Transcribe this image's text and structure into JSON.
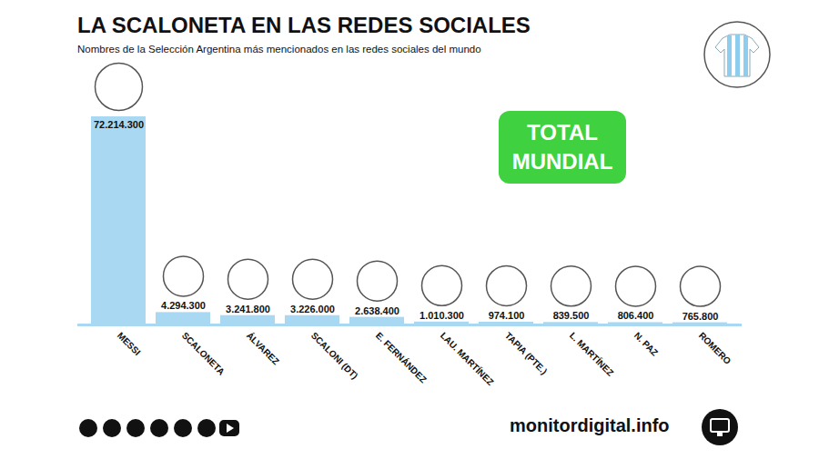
{
  "chart_data": {
    "type": "bar",
    "title": "LA SCALONETA EN LAS REDES SOCIALES",
    "subtitle": "Nombres de la Selección Argentina más mencionados en las redes sociales del mundo",
    "categories": [
      "MESSI",
      "SCALONETA",
      "ÁLVAREZ",
      "SCALONI (DT)",
      "E. FERNÁNDEZ",
      "LAU. MARTÍNEZ",
      "TAPIA (PTE.)",
      "L. MARTÍNEZ",
      "N. PAZ",
      "ROMERO"
    ],
    "values": [
      72214300,
      4294300,
      3241800,
      3226000,
      2638400,
      1010300,
      974100,
      839500,
      806400,
      765800
    ],
    "value_labels": [
      "72.214.300",
      "4.294.300",
      "3.241.800",
      "3.226.000",
      "2.638.400",
      "1.010.300",
      "974.100",
      "839.500",
      "806.400",
      "765.800"
    ],
    "data_labels": true,
    "tick_labels": "x",
    "ylim": [
      0,
      72214300
    ],
    "color": "#a9d9f2",
    "annotations": [
      "TOTAL MUNDIAL"
    ],
    "source": "monitordigital.info"
  }
}
